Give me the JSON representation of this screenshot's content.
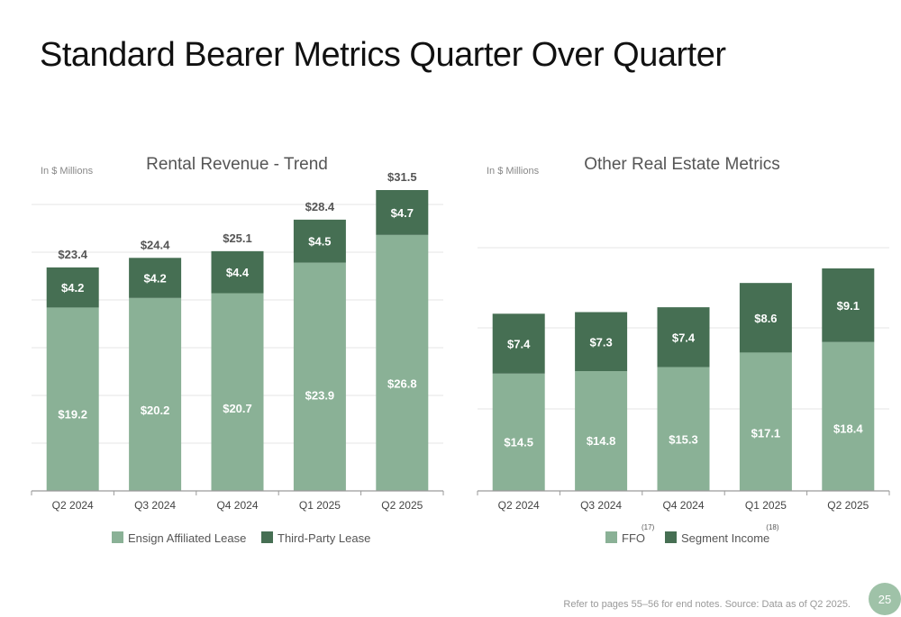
{
  "title": "Standard Bearer Metrics Quarter Over Quarter",
  "footer_note": "Refer to pages 55–56 for end notes. Source: Data as of Q2 2025.",
  "page_number": "25",
  "colors": {
    "light_green": "#8ab196",
    "dark_green": "#466f53",
    "gridline": "#e6e6e6",
    "axis": "#9a9a9a",
    "page_badge": "#9fc2a8"
  },
  "chart_data": [
    {
      "type": "bar",
      "stacked": true,
      "title": "Rental Revenue - Trend",
      "unit_note": "In $ Millions",
      "categories": [
        "Q2 2024",
        "Q3 2024",
        "Q4 2024",
        "Q1 2025",
        "Q2 2025"
      ],
      "series": [
        {
          "name": "Ensign Affiliated Lease",
          "values": [
            19.2,
            20.2,
            20.7,
            23.9,
            26.8
          ],
          "labels": [
            "$19.2",
            "$20.2",
            "$20.7",
            "$23.9",
            "$26.8"
          ]
        },
        {
          "name": "Third-Party Lease",
          "values": [
            4.2,
            4.2,
            4.4,
            4.5,
            4.7
          ],
          "labels": [
            "$4.2",
            "$4.2",
            "$4.4",
            "$4.5",
            "$4.7"
          ]
        }
      ],
      "totals": [
        23.4,
        24.4,
        25.1,
        28.4,
        31.5
      ],
      "total_labels": [
        "$23.4",
        "$24.4",
        "$25.1",
        "$28.4",
        "$31.5"
      ],
      "legend": [
        {
          "name": "Ensign Affiliated Lease",
          "footnote": ""
        },
        {
          "name": "Third-Party Lease",
          "footnote": ""
        }
      ],
      "ylim": [
        0,
        31.5
      ],
      "grid": true,
      "legend_position": "bottom"
    },
    {
      "type": "bar",
      "stacked": true,
      "title": "Other Real Estate Metrics",
      "unit_note": "In $ Millions",
      "categories": [
        "Q2 2024",
        "Q3 2024",
        "Q4 2024",
        "Q1 2025",
        "Q2 2025"
      ],
      "series": [
        {
          "name": "FFO",
          "values": [
            14.5,
            14.8,
            15.3,
            17.1,
            18.4
          ],
          "labels": [
            "$14.5",
            "$14.8",
            "$15.3",
            "$17.1",
            "$18.4"
          ]
        },
        {
          "name": "Segment Income",
          "values": [
            7.4,
            7.3,
            7.4,
            8.6,
            9.1
          ],
          "labels": [
            "$7.4",
            "$7.3",
            "$7.4",
            "$8.6",
            "$9.1"
          ]
        }
      ],
      "totals": [
        21.9,
        22.1,
        22.7,
        25.7,
        27.5
      ],
      "total_labels": [],
      "legend": [
        {
          "name": "FFO",
          "footnote": "(17)"
        },
        {
          "name": "Segment Income",
          "footnote": "(18)"
        }
      ],
      "ylim": [
        0,
        27.5
      ],
      "grid": true,
      "legend_position": "bottom"
    }
  ]
}
